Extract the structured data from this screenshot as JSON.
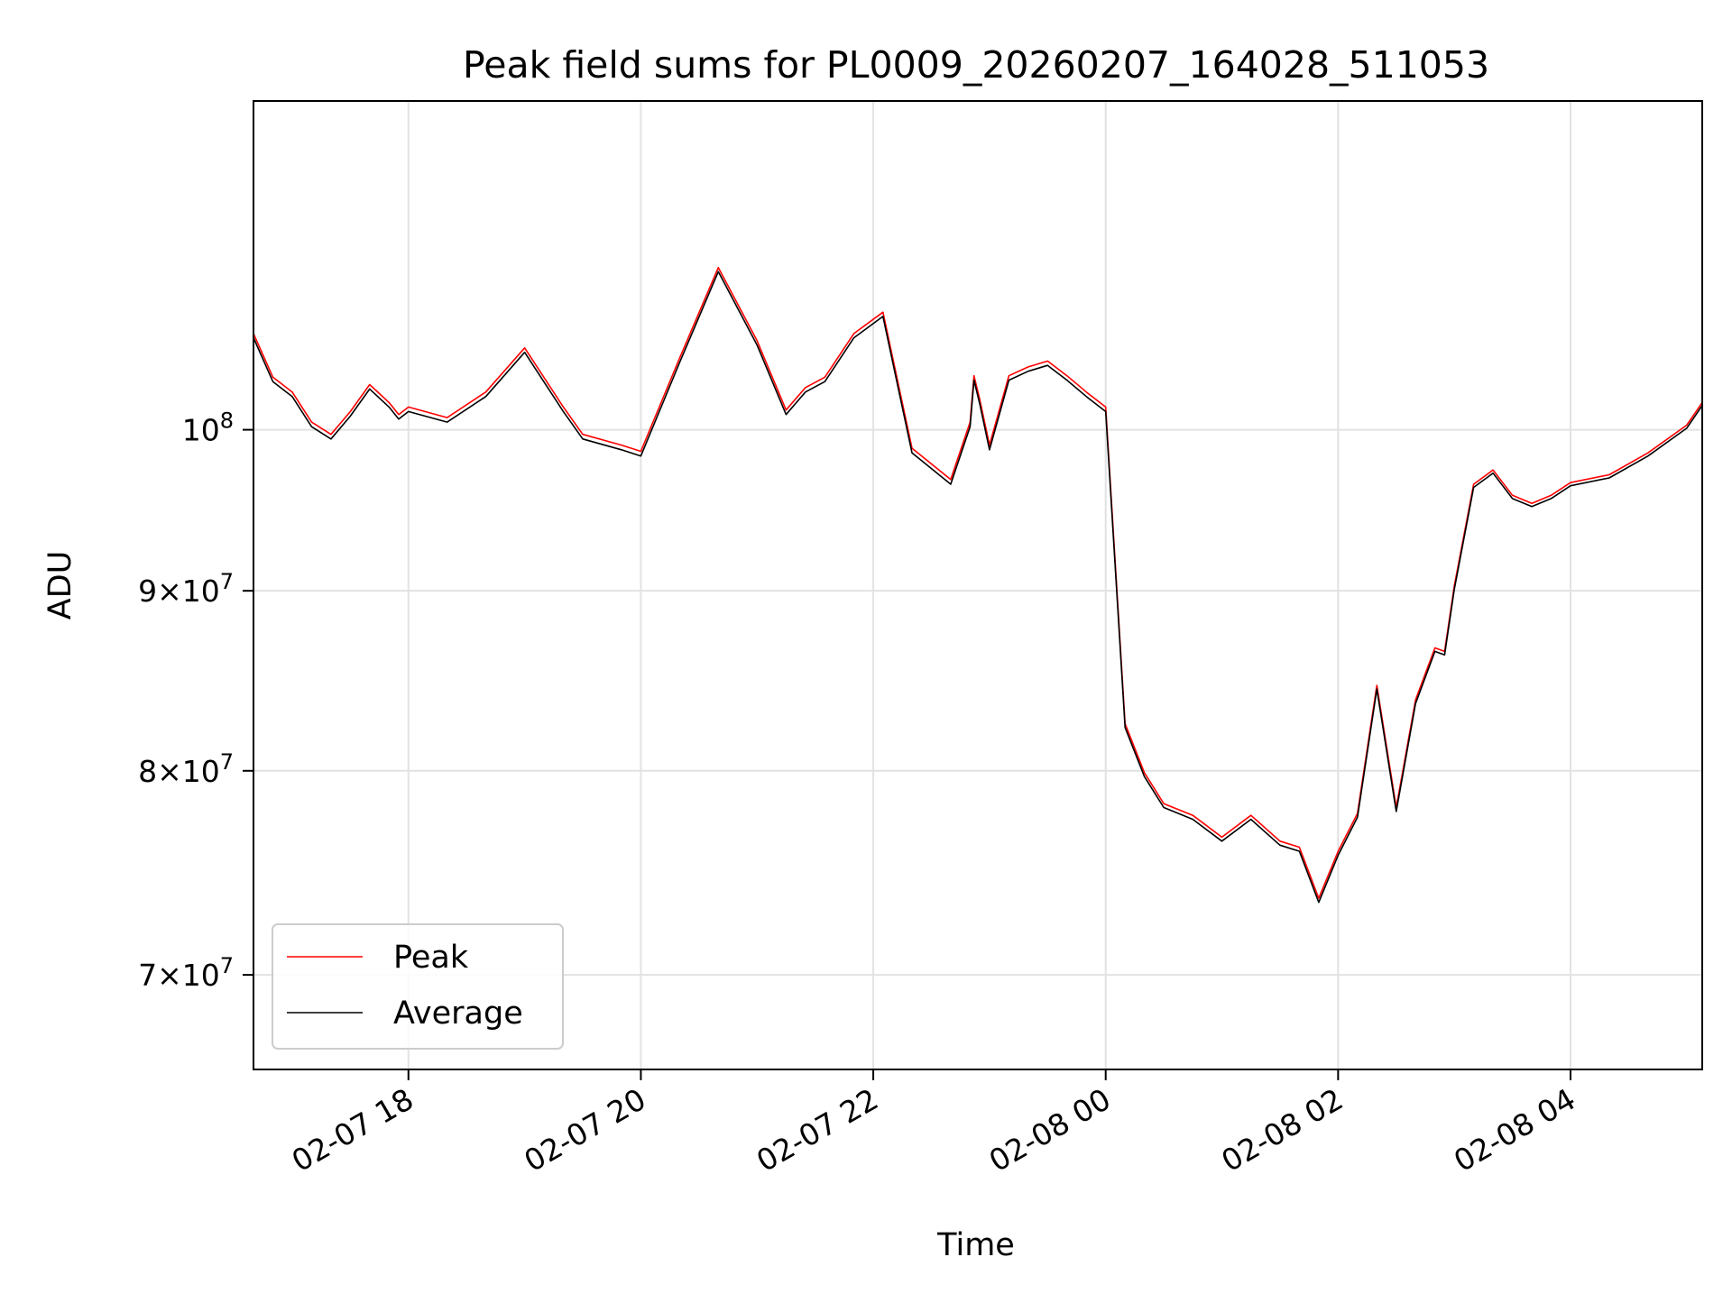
{
  "chart_data": {
    "type": "line",
    "title": "Peak field sums for PL0009_20260207_164028_511053",
    "xlabel": "Time",
    "ylabel": "ADU",
    "y_scale": "log",
    "xlim": [
      "2026-02-07 16:40",
      "2026-02-08 05:08"
    ],
    "ylim": [
      65800000,
      124000000
    ],
    "grid": true,
    "legend_position": "lower-left",
    "x_ticks": [
      {
        "value": "2026-02-07 18:00",
        "label": "02-07 18"
      },
      {
        "value": "2026-02-07 20:00",
        "label": "02-07 20"
      },
      {
        "value": "2026-02-07 22:00",
        "label": "02-07 22"
      },
      {
        "value": "2026-02-08 00:00",
        "label": "02-08 00"
      },
      {
        "value": "2026-02-08 02:00",
        "label": "02-08 02"
      },
      {
        "value": "2026-02-08 04:00",
        "label": "02-08 04"
      }
    ],
    "y_ticks": [
      {
        "value": 70000000,
        "label": "7×10⁷",
        "mantissa": "7",
        "exponent": "7"
      },
      {
        "value": 80000000,
        "label": "8×10⁷",
        "mantissa": "8",
        "exponent": "7"
      },
      {
        "value": 90000000,
        "label": "9×10⁷",
        "mantissa": "9",
        "exponent": "7"
      },
      {
        "value": 100000000,
        "label": "10⁸",
        "mantissa": "",
        "exponent": "8"
      }
    ],
    "series": [
      {
        "name": "Peak",
        "color": "#ff0000",
        "x": [
          "2026-02-07 16:40",
          "2026-02-07 16:50",
          "2026-02-07 17:00",
          "2026-02-07 17:10",
          "2026-02-07 17:20",
          "2026-02-07 17:30",
          "2026-02-07 17:40",
          "2026-02-07 17:50",
          "2026-02-07 17:55",
          "2026-02-07 18:00",
          "2026-02-07 18:20",
          "2026-02-07 18:40",
          "2026-02-07 19:00",
          "2026-02-07 19:20",
          "2026-02-07 19:30",
          "2026-02-07 19:50",
          "2026-02-07 20:00",
          "2026-02-07 20:20",
          "2026-02-07 20:40",
          "2026-02-07 21:00",
          "2026-02-07 21:15",
          "2026-02-07 21:25",
          "2026-02-07 21:35",
          "2026-02-07 21:50",
          "2026-02-07 22:05",
          "2026-02-07 22:20",
          "2026-02-07 22:40",
          "2026-02-07 22:50",
          "2026-02-07 22:52",
          "2026-02-07 22:55",
          "2026-02-07 23:00",
          "2026-02-07 23:10",
          "2026-02-07 23:20",
          "2026-02-07 23:30",
          "2026-02-07 23:40",
          "2026-02-07 23:50",
          "2026-02-08 00:00",
          "2026-02-08 00:10",
          "2026-02-08 00:20",
          "2026-02-08 00:30",
          "2026-02-08 00:45",
          "2026-02-08 01:00",
          "2026-02-08 01:15",
          "2026-02-08 01:30",
          "2026-02-08 01:40",
          "2026-02-08 01:50",
          "2026-02-08 02:00",
          "2026-02-08 02:10",
          "2026-02-08 02:20",
          "2026-02-08 02:30",
          "2026-02-08 02:40",
          "2026-02-08 02:50",
          "2026-02-08 02:55",
          "2026-02-08 03:00",
          "2026-02-08 03:10",
          "2026-02-08 03:20",
          "2026-02-08 03:30",
          "2026-02-08 03:40",
          "2026-02-08 03:50",
          "2026-02-08 04:00",
          "2026-02-08 04:20",
          "2026-02-08 04:40",
          "2026-02-08 05:00",
          "2026-02-08 05:08"
        ],
        "y": [
          106500000,
          103500000,
          102500000,
          100500000,
          99700000,
          101200000,
          103000000,
          101800000,
          101000000,
          101500000,
          100800000,
          102500000,
          105500000,
          101500000,
          99700000,
          99000000,
          98600000,
          104800000,
          111200000,
          106000000,
          101300000,
          102800000,
          103500000,
          106500000,
          108000000,
          98800000,
          96800000,
          100500000,
          103600000,
          102000000,
          99000000,
          103600000,
          104200000,
          104600000,
          103600000,
          102500000,
          101500000,
          82500000,
          79900000,
          78300000,
          77700000,
          76600000,
          77700000,
          76400000,
          76100000,
          73600000,
          75900000,
          77800000,
          84600000,
          78100000,
          83800000,
          86700000,
          86500000,
          90300000,
          96500000,
          97400000,
          95800000,
          95300000,
          95800000,
          96600000,
          97100000,
          98500000,
          100300000,
          101800000
        ]
      },
      {
        "name": "Average",
        "color": "#000000",
        "x": [
          "2026-02-07 16:40",
          "2026-02-07 16:50",
          "2026-02-07 17:00",
          "2026-02-07 17:10",
          "2026-02-07 17:20",
          "2026-02-07 17:30",
          "2026-02-07 17:40",
          "2026-02-07 17:50",
          "2026-02-07 17:55",
          "2026-02-07 18:00",
          "2026-02-07 18:20",
          "2026-02-07 18:40",
          "2026-02-07 19:00",
          "2026-02-07 19:20",
          "2026-02-07 19:30",
          "2026-02-07 19:50",
          "2026-02-07 20:00",
          "2026-02-07 20:20",
          "2026-02-07 20:40",
          "2026-02-07 21:00",
          "2026-02-07 21:15",
          "2026-02-07 21:25",
          "2026-02-07 21:35",
          "2026-02-07 21:50",
          "2026-02-07 22:05",
          "2026-02-07 22:20",
          "2026-02-07 22:40",
          "2026-02-07 22:50",
          "2026-02-07 22:52",
          "2026-02-07 22:55",
          "2026-02-07 23:00",
          "2026-02-07 23:10",
          "2026-02-07 23:20",
          "2026-02-07 23:30",
          "2026-02-07 23:40",
          "2026-02-07 23:50",
          "2026-02-08 00:00",
          "2026-02-08 00:10",
          "2026-02-08 00:20",
          "2026-02-08 00:30",
          "2026-02-08 00:45",
          "2026-02-08 01:00",
          "2026-02-08 01:15",
          "2026-02-08 01:30",
          "2026-02-08 01:40",
          "2026-02-08 01:50",
          "2026-02-08 02:00",
          "2026-02-08 02:10",
          "2026-02-08 02:20",
          "2026-02-08 02:30",
          "2026-02-08 02:40",
          "2026-02-08 02:50",
          "2026-02-08 02:55",
          "2026-02-08 03:00",
          "2026-02-08 03:10",
          "2026-02-08 03:20",
          "2026-02-08 03:30",
          "2026-02-08 03:40",
          "2026-02-08 03:50",
          "2026-02-08 04:00",
          "2026-02-08 04:20",
          "2026-02-08 04:40",
          "2026-02-08 05:00",
          "2026-02-08 05:08"
        ],
        "y": [
          106200000,
          103200000,
          102200000,
          100200000,
          99400000,
          100900000,
          102700000,
          101500000,
          100700000,
          101200000,
          100500000,
          102200000,
          105200000,
          101200000,
          99400000,
          98700000,
          98300000,
          104500000,
          110900000,
          105700000,
          101000000,
          102500000,
          103200000,
          106200000,
          107700000,
          98500000,
          96500000,
          100200000,
          103300000,
          101700000,
          98700000,
          103300000,
          103900000,
          104300000,
          103300000,
          102200000,
          101200000,
          82300000,
          79700000,
          78100000,
          77500000,
          76400000,
          77500000,
          76200000,
          75900000,
          73400000,
          75700000,
          77600000,
          84400000,
          77900000,
          83600000,
          86500000,
          86300000,
          90100000,
          96300000,
          97200000,
          95600000,
          95100000,
          95600000,
          96400000,
          96900000,
          98300000,
          100100000,
          101600000
        ]
      }
    ]
  }
}
